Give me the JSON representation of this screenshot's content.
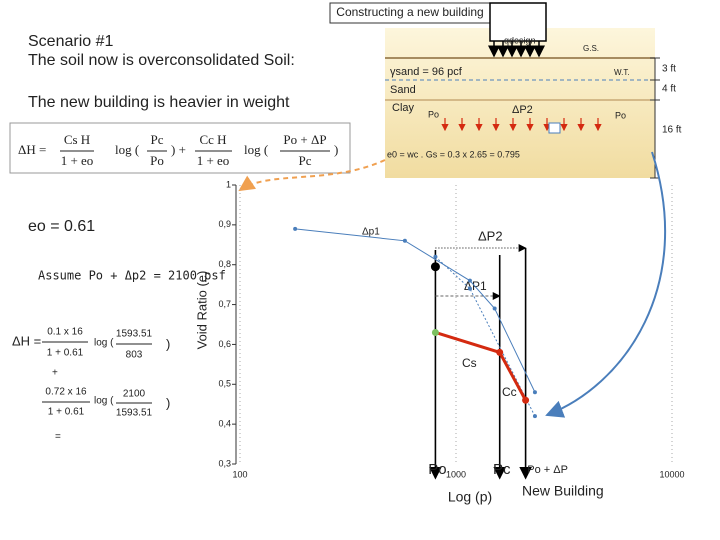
{
  "header": "Constructing a new building",
  "scenario": {
    "title": "Scenario #1",
    "subtitle": "The soil now is overconsolidated Soil:",
    "note": "The new building is heavier in weight"
  },
  "profile": {
    "load": "qdesign",
    "ground": "G.S.",
    "unit_weight": "γsand = 96 pcf",
    "water_table": "W.T.",
    "sand": "Sand",
    "clay": "Clay",
    "depth_1": "3 ft",
    "depth_2": "4 ft",
    "depth_3": "16 ft",
    "p_left": "Po",
    "delta": "ΔP2",
    "p_right": "Po",
    "void_ratio": "e0 = wc . Gs = 0.3 x 2.65 = 0.795"
  },
  "formula": {
    "lhs": "ΔH =",
    "t1_num": "Cs H",
    "t1_den": "1 + eo",
    "log1": "log (",
    "r1_num": "Pc",
    "r1_den": "Po",
    "close1": ") +",
    "t2_num": "Cc H",
    "t2_den": "1 + eo",
    "log2": "log (",
    "r2_num": "Po + ΔP",
    "r2_den": "Pc",
    "close2": ")"
  },
  "given": {
    "e0": "eo = 0.61",
    "assume": "Assume Po + Δp2 = 2100 psf"
  },
  "calc": {
    "lhs": "ΔH =",
    "a_num": "0.1 x 16",
    "a_den": "1 + 0.61",
    "a_log": "log (",
    "a_r_num": "1593.51",
    "a_r_den": "803",
    "a_close": ")",
    "plus": "+",
    "b_num": "0.72 x 16",
    "b_den": "1 + 0.61",
    "b_log": "log (",
    "b_r_num": "2100",
    "b_r_den": "1593.51",
    "b_close": ")",
    "equals": "="
  },
  "chart_data": {
    "type": "line",
    "ylabel": "Void Ratio (e)",
    "xlabel": "Log (p)",
    "xscale": "log",
    "xlim": [
      100,
      10000
    ],
    "xticks": [
      100,
      1000,
      10000
    ],
    "ylim": [
      0.3,
      1
    ],
    "yticks": [
      1,
      {
        "value": 0.9,
        "label": "0,9"
      },
      {
        "value": 0.8,
        "label": "0,8"
      },
      {
        "value": 0.7,
        "label": "0,7"
      },
      {
        "value": 0.6,
        "label": "0,6"
      },
      {
        "value": 0.5,
        "label": "0,5"
      },
      {
        "value": 0.4,
        "label": "0,4"
      },
      {
        "value": 0.3,
        "label": "0,3"
      }
    ],
    "grid": true,
    "series": [
      {
        "color": "#4a7ebb",
        "x": [
          180,
          580,
          1160,
          1510,
          2320
        ],
        "values": [
          0.89,
          0.86,
          0.76,
          0.69,
          0.48
        ]
      },
      {
        "color": "#4a7ebb",
        "x": [
          803,
          1160,
          2320
        ],
        "values": [
          0.82,
          0.74,
          0.42
        ]
      },
      {
        "color": "#d42a10",
        "x": [
          803,
          1593.51,
          2100
        ],
        "values": [
          0.63,
          0.58,
          0.46
        ]
      },
      {
        "color": "#000000",
        "x": [
          803
        ],
        "values": [
          0.795
        ]
      }
    ],
    "markers": {
      "x": [
        803,
        1593.51,
        2100
      ],
      "labels": [
        "Po",
        "Pc",
        "Po + ΔP"
      ]
    },
    "annotations": {
      "dp1": "Δp1",
      "dp2": "ΔP2",
      "dp1b": "ΔP1",
      "cs": "Cs",
      "cc": "Cc",
      "building": "New Building"
    }
  }
}
